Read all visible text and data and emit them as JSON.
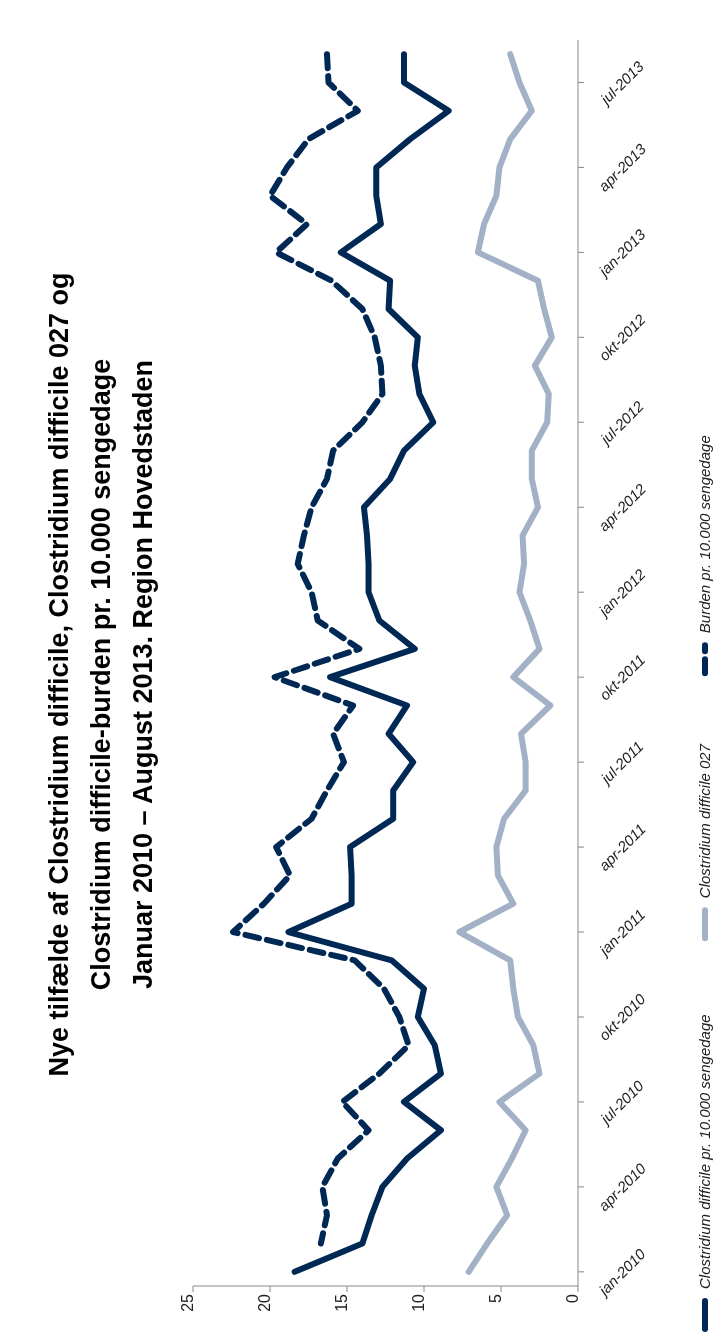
{
  "chart_data": {
    "type": "line",
    "orientation": "horizontal",
    "title": "Nye tilfælde af Clostridium difficile, Clostridium difficile 027 og\nClostridium difficile-burden pr. 10.000 sengedage\nJanuar 2010 – August 2013. Region Hovedstaden",
    "categories": [
      null,
      "jul-2013",
      null,
      null,
      "apr-2013",
      null,
      null,
      "jan-2013",
      null,
      null,
      "okt-2012",
      null,
      null,
      "jul-2012",
      null,
      null,
      "apr-2012",
      null,
      null,
      "jan-2012",
      null,
      null,
      "okt-2011",
      null,
      null,
      "jul-2011",
      null,
      null,
      "apr-2011",
      null,
      null,
      "jan-2011",
      null,
      null,
      "okt-2010",
      null,
      null,
      "jul-2010",
      null,
      null,
      "apr-2010",
      null,
      null,
      "jan-2010"
    ],
    "series": [
      {
        "name": "Clostridium difficile pr. 10.000 sengedage",
        "color": "#002855",
        "line_style": "solid",
        "values": [
          11.3,
          11.3,
          8.4,
          10.9,
          13.1,
          13.1,
          12.8,
          15.4,
          12.2,
          12.3,
          10.4,
          10.6,
          10.3,
          9.4,
          11.3,
          12.2,
          13.9,
          13.7,
          13.6,
          13.6,
          12.9,
          10.6,
          16.1,
          11.1,
          12.3,
          10.7,
          12.0,
          12.0,
          14.8,
          14.7,
          14.7,
          18.8,
          12.1,
          10.0,
          10.4,
          9.3,
          8.9,
          11.3,
          8.9,
          11.1,
          12.7,
          13.4,
          14.0,
          18.4
        ]
      },
      {
        "name": "Clostridium difficile 027",
        "color": "#a3b1c6",
        "line_style": "solid",
        "values": [
          4.4,
          3.8,
          3.0,
          4.4,
          5.1,
          5.3,
          6.1,
          6.5,
          2.6,
          2.2,
          1.7,
          2.8,
          1.9,
          2.0,
          3.0,
          3.0,
          2.6,
          3.6,
          3.5,
          3.8,
          3.1,
          2.5,
          4.2,
          1.8,
          3.7,
          3.4,
          3.4,
          4.8,
          5.3,
          5.2,
          4.2,
          7.7,
          4.4,
          4.2,
          3.9,
          2.9,
          2.5,
          5.1,
          3.4,
          4.3,
          5.3,
          4.6,
          5.9,
          7.1
        ]
      },
      {
        "name": "Burden pr. 10.000 sengedage",
        "color": "#002855",
        "line_style": "dashed",
        "values": [
          16.3,
          16.2,
          14.3,
          17.5,
          18.9,
          20.0,
          17.6,
          19.6,
          16.0,
          14.0,
          13.2,
          12.8,
          12.7,
          14.0,
          15.9,
          16.3,
          17.3,
          17.8,
          18.2,
          17.3,
          16.9,
          14.2,
          19.7,
          14.6,
          15.9,
          15.2,
          16.3,
          17.3,
          19.6,
          18.7,
          20.4,
          22.4,
          14.5,
          12.6,
          11.6,
          11.0,
          12.9,
          15.3,
          13.6,
          15.6,
          16.6,
          16.3,
          16.7,
          null
        ]
      }
    ],
    "xlim": [
      25,
      0
    ],
    "xticks": [
      25,
      20,
      15,
      10,
      5,
      0
    ],
    "grid": false,
    "legend": "right",
    "marker": "none"
  }
}
